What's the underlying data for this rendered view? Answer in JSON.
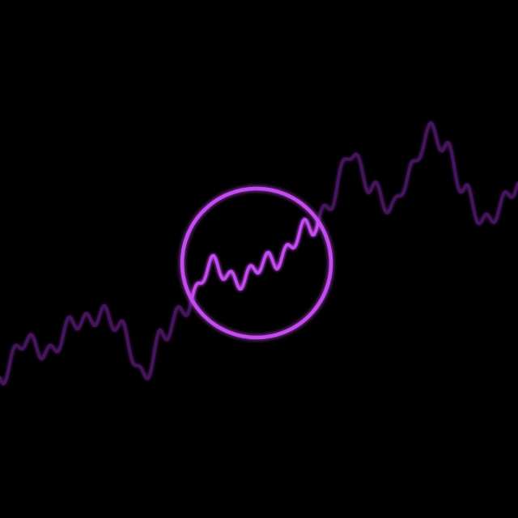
{
  "scene": {
    "background_color": "#000000",
    "accent_color": "#c44cf0",
    "dim_color": "#5a1a78",
    "glow_color": "#b23ce6",
    "elements": [
      "glowing-ring",
      "audio-waveform-line"
    ]
  }
}
